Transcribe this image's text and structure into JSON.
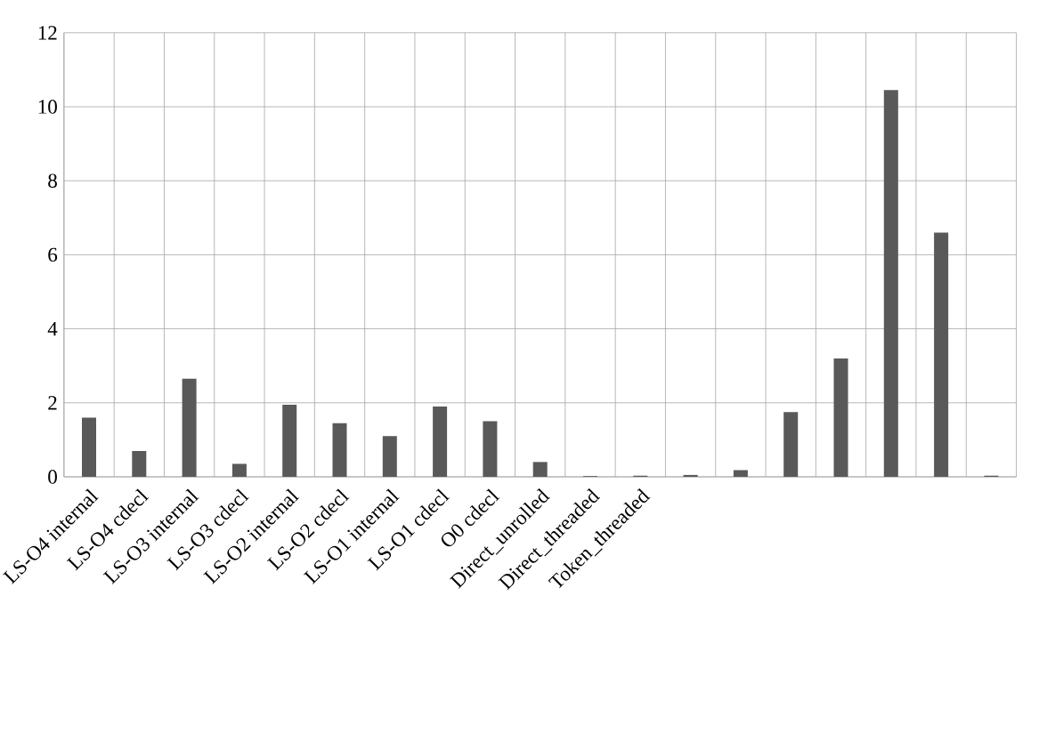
{
  "chart_data": {
    "type": "bar",
    "categories": [
      "LS-O4 internal",
      "LS-O4 cdecl",
      "LS-O3 internal",
      "LS-O3 cdecl",
      "LS-O2 internal",
      "LS-O2 cdecl",
      "LS-O1 internal",
      "LS-O1 cdecl",
      "O0 cdecl",
      "Direct_unrolled",
      "Direct_threaded",
      "Token_threaded",
      null,
      null,
      null,
      null,
      null,
      null,
      null
    ],
    "values": [
      1.6,
      0.7,
      2.65,
      0.35,
      1.95,
      1.45,
      1.1,
      1.9,
      1.5,
      0.4,
      0.02,
      0.03,
      0.05,
      0.18,
      1.75,
      3.2,
      10.45,
      6.6,
      0.03
    ],
    "color": "#595959",
    "ylim": [
      0,
      12
    ],
    "yticks": [
      0,
      2,
      4,
      6,
      8,
      10,
      12
    ],
    "grid": true
  }
}
